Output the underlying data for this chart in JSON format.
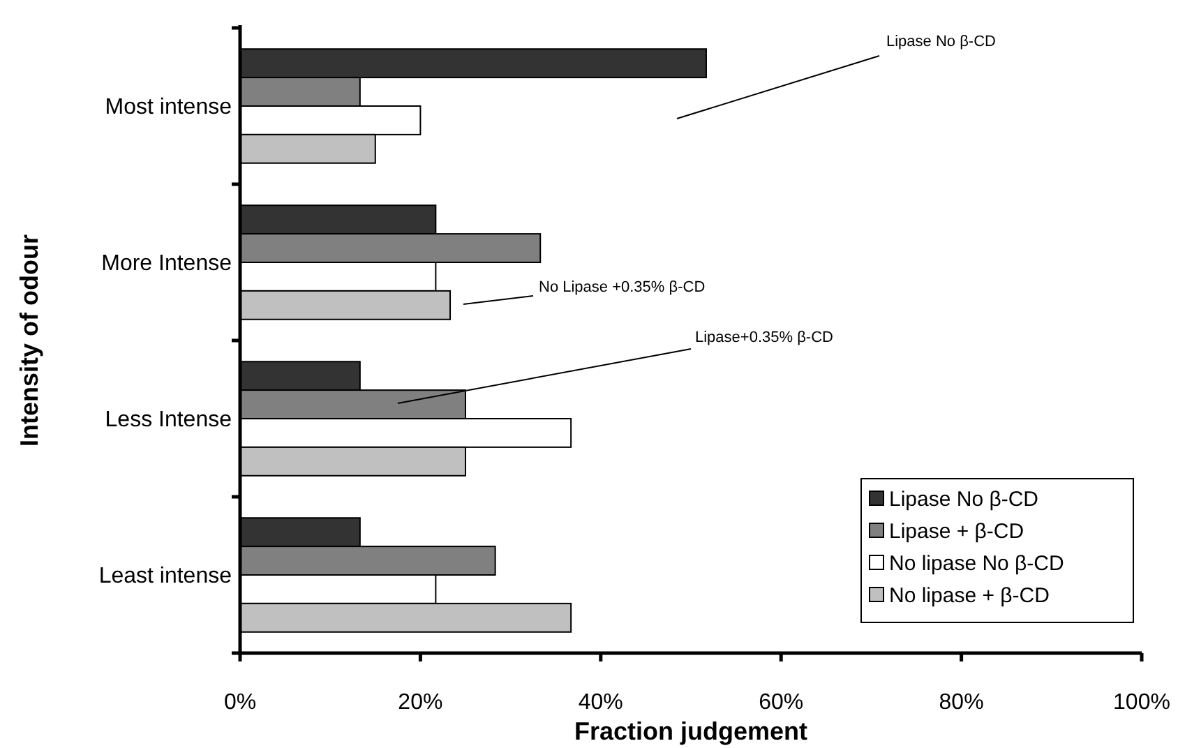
{
  "chart_data": {
    "type": "bar",
    "orientation": "horizontal",
    "xlabel": "Fraction judgement",
    "ylabel": "Intensity of odour",
    "categories": [
      "Most intense",
      "More Intense",
      "Less Intense",
      "Least intense"
    ],
    "series": [
      {
        "name": "Lipase No β-CD",
        "color": "#333333",
        "values": [
          51.7,
          21.7,
          13.3,
          13.3
        ]
      },
      {
        "name": "Lipase + β-CD",
        "color": "#808080",
        "values": [
          13.3,
          33.3,
          25.0,
          28.3
        ]
      },
      {
        "name": "No lipase No β-CD",
        "color": "#ffffff",
        "values": [
          20.0,
          21.7,
          36.7,
          21.7
        ]
      },
      {
        "name": "No lipase + β-CD",
        "color": "#c0c0c0",
        "values": [
          15.0,
          23.3,
          25.0,
          36.7
        ]
      }
    ],
    "xlim": [
      0,
      100
    ],
    "xticks": [
      {
        "value": 0,
        "label": "0%"
      },
      {
        "value": 20,
        "label": "20%"
      },
      {
        "value": 40,
        "label": "40%"
      },
      {
        "value": 60,
        "label": "60%"
      },
      {
        "value": 80,
        "label": "80%"
      },
      {
        "value": 100,
        "label": "100%"
      }
    ],
    "annotations": [
      "Lipase No β-CD",
      "No Lipase +0.35% β-CD",
      "Lipase+0.35% β-CD"
    ],
    "grid": false,
    "legend": "bottom right"
  }
}
